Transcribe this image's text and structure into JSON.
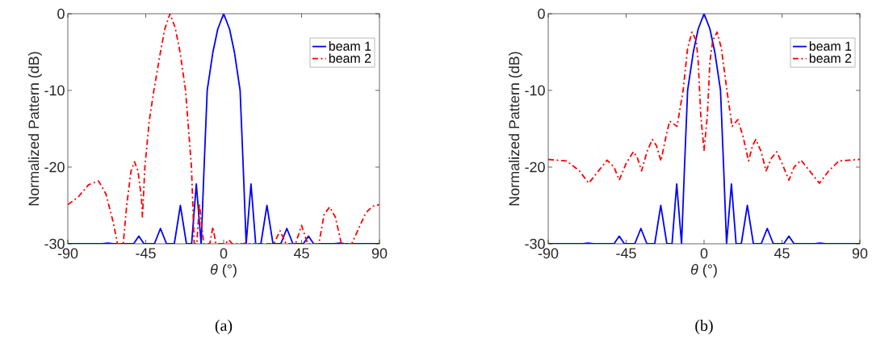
{
  "chart_data": [
    {
      "type": "line",
      "xlabel": "*θ* (°)",
      "ylabel": "Normalized Pattern (dB)",
      "xlim": [
        -90,
        90
      ],
      "ylim": [
        -30,
        0
      ],
      "xticks": [
        -90,
        -45,
        0,
        45,
        90
      ],
      "yticks": [
        -30,
        -20,
        -10,
        0
      ],
      "legend": "top right",
      "annotations": [
        "(a)"
      ],
      "series": [
        {
          "name": "beam 1",
          "color": "#0000ff",
          "line_style": "solid",
          "x": [
            -90,
            -70,
            -67,
            -64,
            -52,
            -49,
            -46,
            -40,
            -36.5,
            -33,
            -28.5,
            -25,
            -21.5,
            -18.5,
            -15.8,
            -13,
            -11.3,
            -9.5,
            -6.2,
            -3.4,
            0,
            3.4,
            6.2,
            9.5,
            11.3,
            13,
            15.8,
            18.5,
            21.5,
            25,
            28.5,
            33,
            36.5,
            40,
            46,
            49,
            52,
            64,
            67,
            70,
            90
          ],
          "values": [
            -30,
            -30,
            -29.9,
            -30,
            -30,
            -29,
            -30,
            -30,
            -28,
            -30,
            -30,
            -25,
            -30,
            -30,
            -22.2,
            -30,
            -20,
            -10,
            -5,
            -2,
            0,
            -2,
            -5,
            -10,
            -20,
            -30,
            -22.2,
            -30,
            -30,
            -25,
            -30,
            -30,
            -28,
            -30,
            -30,
            -29,
            -30,
            -30,
            -29.9,
            -30,
            -30
          ]
        },
        {
          "name": "beam 2",
          "color": "#ff0000",
          "line_style": "dashdot",
          "x": [
            -90,
            -84,
            -78,
            -72.3,
            -68,
            -64,
            -61.3,
            -58,
            -56,
            -53.5,
            -51.5,
            -49.5,
            -47.5,
            -46.9,
            -45.5,
            -43,
            -40.3,
            -36.5,
            -34,
            -31,
            -28,
            -25.2,
            -22,
            -18.6,
            -17,
            -15.5,
            -14,
            -12.5,
            -11.5,
            -8,
            -6.2,
            -4.5,
            1,
            3,
            5,
            11,
            12.4,
            14,
            29,
            32.6,
            36,
            41.5,
            45,
            48.5,
            55,
            58,
            61.2,
            64.5,
            68,
            74,
            78,
            82,
            86,
            90
          ],
          "values": [
            -24.9,
            -23.9,
            -22.3,
            -21.8,
            -23.5,
            -27,
            -30,
            -30,
            -25,
            -20.5,
            -19.3,
            -20.5,
            -24,
            -26.5,
            -20,
            -14,
            -10,
            -5,
            -2,
            0,
            -1.8,
            -5,
            -10,
            -20,
            -30,
            -30,
            -24.8,
            -28,
            -30,
            -30,
            -27.8,
            -30,
            -30,
            -29.5,
            -30,
            -30,
            -29.9,
            -30,
            -30,
            -28.3,
            -30,
            -30,
            -27.6,
            -30,
            -30,
            -26.2,
            -25.2,
            -26.5,
            -30,
            -30,
            -28,
            -26,
            -25.1,
            -24.9
          ]
        }
      ]
    },
    {
      "type": "line",
      "xlabel": "*θ* (°)",
      "ylabel": "Normalized Pattern (dB)",
      "xlim": [
        -90,
        90
      ],
      "ylim": [
        -30,
        0
      ],
      "xticks": [
        -90,
        -45,
        0,
        45,
        90
      ],
      "yticks": [
        -30,
        -20,
        -10,
        0
      ],
      "legend": "top right",
      "annotations": [
        "(b)"
      ],
      "series": [
        {
          "name": "beam 1",
          "color": "#0000ff",
          "line_style": "solid",
          "x": [
            -90,
            -70,
            -67,
            -64,
            -52,
            -49,
            -46,
            -40,
            -36.5,
            -33,
            -28.5,
            -25,
            -21.5,
            -18.5,
            -15.8,
            -13,
            -11.3,
            -9.5,
            -6.2,
            -3.4,
            0,
            3.4,
            6.2,
            9.5,
            11.3,
            13,
            15.8,
            18.5,
            21.5,
            25,
            28.5,
            33,
            36.5,
            40,
            46,
            49,
            52,
            64,
            67,
            70,
            90
          ],
          "values": [
            -30,
            -30,
            -29.9,
            -30,
            -30,
            -29,
            -30,
            -30,
            -28,
            -30,
            -30,
            -25,
            -30,
            -30,
            -22.2,
            -30,
            -20,
            -10,
            -5,
            -2,
            0,
            -2,
            -5,
            -10,
            -20,
            -30,
            -22.2,
            -30,
            -30,
            -25,
            -30,
            -30,
            -28,
            -30,
            -30,
            -29,
            -30,
            -30,
            -29.9,
            -30,
            -30
          ]
        },
        {
          "name": "beam 2",
          "color": "#ff0000",
          "line_style": "dashdot",
          "x": [
            -90,
            -79.4,
            -72,
            -66.6,
            -61,
            -56,
            -52,
            -49,
            -45,
            -40.8,
            -38.5,
            -36.1,
            -33,
            -29.9,
            -27.5,
            -24.9,
            -22,
            -19.9,
            -15.6,
            -12.1,
            -9.5,
            -7,
            -4.5,
            -3.4,
            -1.9,
            0,
            1.9,
            3.4,
            5,
            7.5,
            10,
            13.2,
            16.2,
            19.5,
            22.5,
            25.7,
            28,
            29.9,
            33,
            35.8,
            39,
            42,
            45,
            49,
            52,
            56,
            61,
            66.6,
            72,
            77.9,
            84,
            90
          ],
          "values": [
            -19,
            -19.2,
            -20.5,
            -22.1,
            -20.5,
            -19.1,
            -20,
            -21.7,
            -19.5,
            -18,
            -18.8,
            -20.5,
            -18,
            -16.4,
            -17.2,
            -19.2,
            -16,
            -14,
            -14.7,
            -10,
            -4.5,
            -2.4,
            -3.5,
            -6.2,
            -13.3,
            -17.8,
            -13.3,
            -6.2,
            -3.5,
            -2.4,
            -4.5,
            -10,
            -14.7,
            -13.8,
            -16,
            -19.2,
            -17.2,
            -16.4,
            -18,
            -20.5,
            -18.8,
            -18,
            -19.5,
            -21.7,
            -20,
            -19.1,
            -20.5,
            -22.1,
            -20.5,
            -19.2,
            -19.1,
            -19
          ]
        }
      ]
    }
  ]
}
